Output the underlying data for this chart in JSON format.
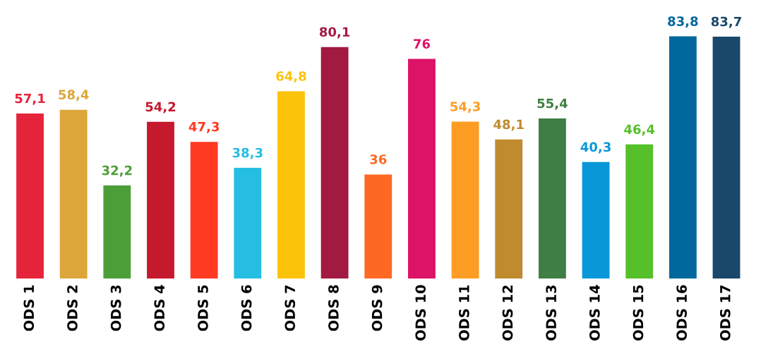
{
  "chart_data": {
    "type": "bar",
    "categories": [
      "ODS 1",
      "ODS 2",
      "ODS 3",
      "ODS 4",
      "ODS 5",
      "ODS 6",
      "ODS 7",
      "ODS 8",
      "ODS 9",
      "ODS 10",
      "ODS 11",
      "ODS 12",
      "ODS 13",
      "ODS 14",
      "ODS 15",
      "ODS 16",
      "ODS 17"
    ],
    "values": [
      57.1,
      58.4,
      32.2,
      54.2,
      47.3,
      38.3,
      64.8,
      80.1,
      36,
      76,
      54.3,
      48.1,
      55.4,
      40.3,
      46.4,
      83.8,
      83.7
    ],
    "value_labels": [
      "57,1",
      "58,4",
      "32,2",
      "54,2",
      "47,3",
      "38,3",
      "64,8",
      "80,1",
      "36",
      "76",
      "54,3",
      "48,1",
      "55,4",
      "40,3",
      "46,4",
      "83,8",
      "83,7"
    ],
    "colors": [
      "#e5243b",
      "#dda63a",
      "#4c9f38",
      "#c5192d",
      "#ff3a21",
      "#26bde2",
      "#fcc30b",
      "#a21942",
      "#fd6925",
      "#dd1367",
      "#fd9d24",
      "#bf8b2e",
      "#3f7e44",
      "#0a97d9",
      "#56c02b",
      "#00689d",
      "#19486a"
    ],
    "tick_labels": "x",
    "grid": false,
    "legend": false
  }
}
